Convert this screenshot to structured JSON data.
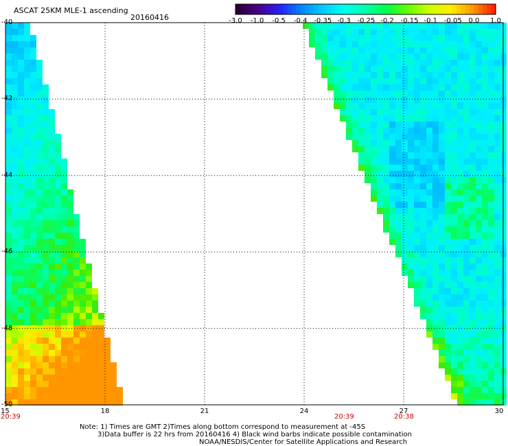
{
  "header": {
    "title": "ASCAT 25KM MLE-1 ascending",
    "date": "20160416"
  },
  "colorbar": {
    "labels": [
      "-3.0",
      "-1.0",
      "-0.5",
      "-0.4",
      "-0.35",
      "-0.3",
      "-0.25",
      "-0.2",
      "-0.15",
      "-0.1",
      "-0.05",
      "0.0",
      "1.0"
    ],
    "colors": [
      "#2a0030",
      "#4a0090",
      "#2222ff",
      "#0088ff",
      "#00ccff",
      "#00ffee",
      "#00ffaa",
      "#00ff44",
      "#66ff00",
      "#ccff00",
      "#ffee00",
      "#ff9900",
      "#ff2200"
    ]
  },
  "map": {
    "lon_ticks": [
      "15",
      "18",
      "21",
      "24",
      "27",
      "30"
    ],
    "lat_ticks": [
      "-40",
      "-42",
      "-44",
      "-46",
      "-48",
      "-50"
    ],
    "lon_range": [
      15,
      30
    ],
    "lat_range": [
      -50,
      -40
    ],
    "times": [
      {
        "lon": 15,
        "text": "20:39"
      },
      {
        "lon": 25.2,
        "text": "20:39"
      },
      {
        "lon": 27,
        "text": "20:38"
      }
    ]
  },
  "notes": {
    "line1": "Note: 1) Times are GMT 2)Times along bottom correspond to measurement at -45S",
    "line2": "3)Data buffer is 22 hrs from 20160416 4) Black wind barbs indicate possible contamination",
    "line3": "NOAA/NESDIS/Center for Satellite Applications and Research"
  }
}
